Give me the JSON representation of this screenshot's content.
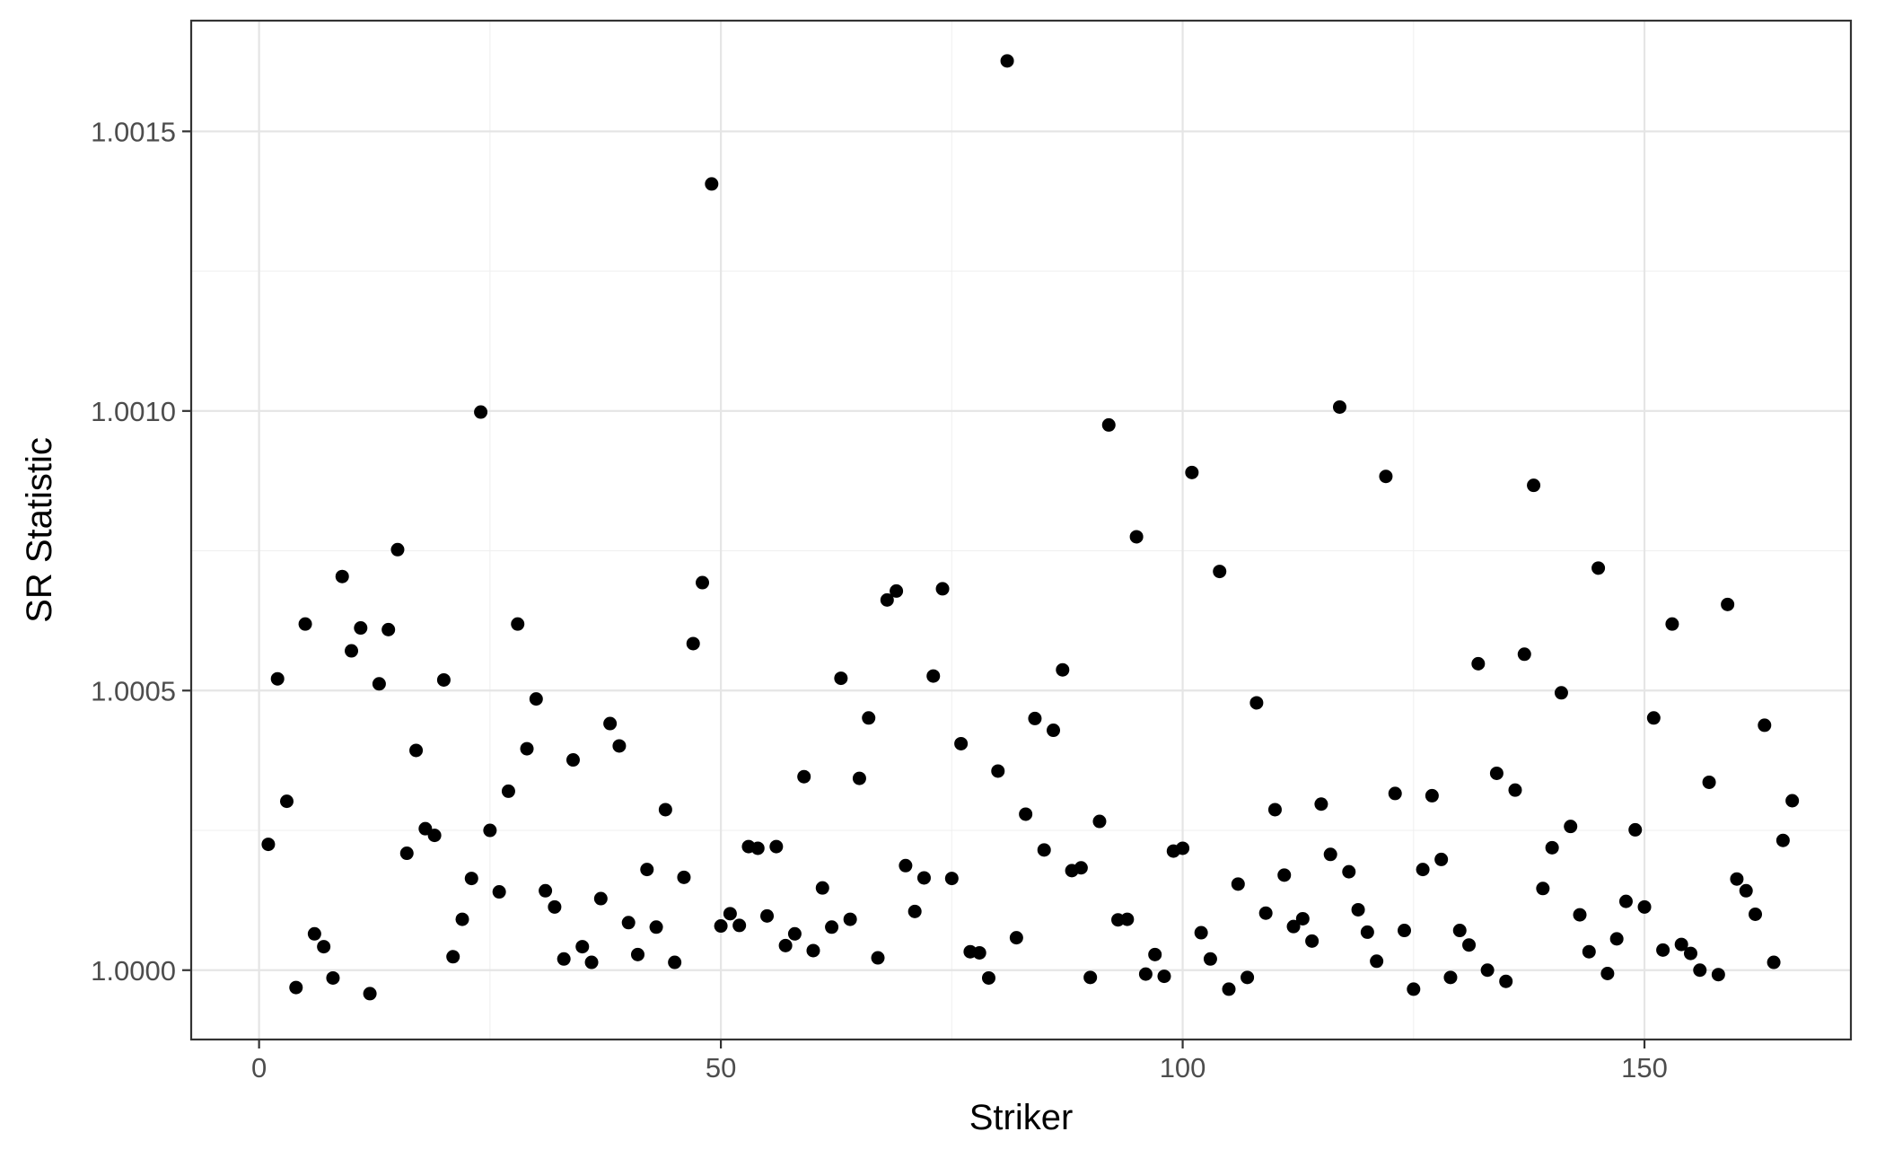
{
  "chart_data": {
    "type": "scatter",
    "title": "",
    "xlabel": "Striker",
    "ylabel": "SR Statistic",
    "xlim": [
      -7.35,
      172.35
    ],
    "ylim": [
      0.999876,
      1.001698
    ],
    "x_ticks": [
      0,
      50,
      100,
      150
    ],
    "x_tick_labels": [
      "0",
      "50",
      "100",
      "150"
    ],
    "y_ticks": [
      1.0,
      1.0005,
      1.001,
      1.0015
    ],
    "y_tick_labels": [
      "1.0000",
      "1.0005",
      "1.0010",
      "1.0015"
    ],
    "grid": true,
    "legend": "none",
    "point_color": "#000000",
    "x": [
      1,
      2,
      3,
      4,
      5,
      6,
      7,
      8,
      9,
      10,
      11,
      12,
      13,
      14,
      15,
      16,
      17,
      18,
      19,
      20,
      21,
      22,
      23,
      24,
      25,
      26,
      27,
      28,
      29,
      30,
      31,
      32,
      33,
      34,
      35,
      36,
      37,
      38,
      39,
      40,
      41,
      42,
      43,
      44,
      45,
      46,
      47,
      48,
      49,
      50,
      51,
      52,
      53,
      54,
      55,
      56,
      57,
      58,
      59,
      60,
      61,
      62,
      63,
      64,
      65,
      66,
      67,
      68,
      69,
      70,
      71,
      72,
      73,
      74,
      75,
      76,
      77,
      78,
      79,
      80,
      81,
      82,
      83,
      84,
      85,
      86,
      87,
      88,
      89,
      90,
      91,
      92,
      93,
      94,
      95,
      96,
      97,
      98,
      99,
      100,
      101,
      102,
      103,
      104,
      105,
      106,
      107,
      108,
      109,
      110,
      111,
      112,
      113,
      114,
      115,
      116,
      117,
      118,
      119,
      120,
      121,
      122,
      123,
      124,
      125,
      126,
      127,
      128,
      129,
      130,
      131,
      132,
      133,
      134,
      135,
      136,
      137,
      138,
      139,
      140,
      141,
      142,
      143,
      144,
      145,
      146,
      147,
      148,
      149,
      150,
      151,
      152,
      153,
      154,
      155,
      156,
      157,
      158,
      159,
      160,
      161,
      162,
      163,
      164,
      165,
      166
    ],
    "y": [
      1.000225,
      1.000521,
      1.000302,
      0.999969,
      1.000619,
      1.000065,
      1.000042,
      0.999986,
      1.000704,
      1.000571,
      1.000612,
      0.999958,
      1.000512,
      1.000609,
      1.000752,
      1.000209,
      1.000393,
      1.000253,
      1.000241,
      1.000519,
      1.000024,
      1.000091,
      1.000164,
      1.000998,
      1.00025,
      1.00014,
      1.00032,
      1.000619,
      1.000396,
      1.000485,
      1.000142,
      1.000113,
      1.00002,
      1.000376,
      1.000042,
      1.000014,
      1.000128,
      1.000441,
      1.000401,
      1.000085,
      1.000028,
      1.00018,
      1.000077,
      1.000287,
      1.000014,
      1.000166,
      1.000584,
      1.000693,
      1.001406,
      1.000079,
      1.000101,
      1.00008,
      1.000221,
      1.000218,
      1.000097,
      1.000221,
      1.000044,
      1.000065,
      1.000346,
      1.000035,
      1.000147,
      1.000077,
      1.000522,
      1.000091,
      1.000343,
      1.000451,
      1.000022,
      1.000662,
      1.000678,
      1.000187,
      1.000105,
      1.000165,
      1.000526,
      1.000682,
      1.000164,
      1.000405,
      1.000033,
      1.000031,
      0.999986,
      1.000356,
      1.001626,
      1.000058,
      1.000279,
      1.00045,
      1.000215,
      1.000429,
      1.000537,
      1.000178,
      1.000183,
      0.999987,
      1.000266,
      1.000975,
      1.00009,
      1.000091,
      1.000775,
      0.999993,
      1.000028,
      0.999989,
      1.000213,
      1.000218,
      1.00089,
      1.000067,
      1.00002,
      1.000713,
      0.999966,
      1.000154,
      0.999987,
      1.000478,
      1.000102,
      1.000287,
      1.00017,
      1.000078,
      1.000092,
      1.000052,
      1.000297,
      1.000207,
      1.001007,
      1.000176,
      1.000108,
      1.000068,
      1.000016,
      1.000883,
      1.000316,
      1.000071,
      0.999966,
      1.00018,
      1.000312,
      1.000198,
      0.999987,
      1.000071,
      1.000045,
      1.000548,
      1.0,
      1.000352,
      0.99998,
      1.000322,
      1.000565,
      1.000867,
      1.000146,
      1.000219,
      1.000496,
      1.000257,
      1.000099,
      1.000033,
      1.000719,
      0.999994,
      1.000056,
      1.000123,
      1.000251,
      1.000113,
      1.000451,
      1.000036,
      1.000619,
      1.000046,
      1.00003,
      1.0,
      1.000336,
      0.999992,
      1.000654,
      1.000163,
      1.000142,
      1.0001,
      1.000438,
      1.000014,
      1.000232,
      1.000303
    ]
  }
}
